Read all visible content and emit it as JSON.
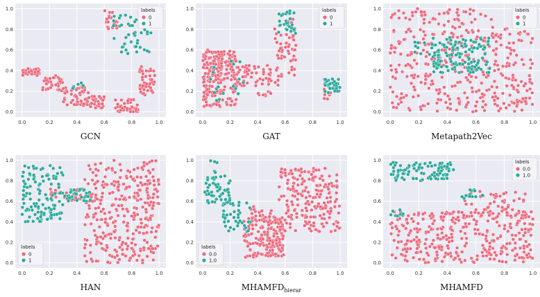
{
  "colors": {
    "class0": "#ec6a7e",
    "class1": "#2aa99a",
    "panel": "#eaeaf2"
  },
  "chart_data": [
    {
      "type": "scatter",
      "title": "GCN",
      "caption_main": "GCN",
      "caption_sub": "",
      "xlim": [
        -0.05,
        1.05
      ],
      "ylim": [
        -0.05,
        1.05
      ],
      "xticks": [
        "0.0",
        "0.2",
        "0.4",
        "0.6",
        "0.8",
        "1.0"
      ],
      "yticks": [
        "0.0",
        "0.2",
        "0.4",
        "0.6",
        "0.8",
        "1.0"
      ],
      "legend": {
        "title": "labels",
        "position": "top-right",
        "entries": [
          "0",
          "1"
        ]
      },
      "series": [
        {
          "name": "0",
          "clusters": [
            {
              "x": [
                0.0,
                0.14
              ],
              "y": [
                0.35,
                0.42
              ],
              "n": 40,
              "seed": 11
            },
            {
              "x": [
                0.15,
                0.3
              ],
              "y": [
                0.2,
                0.35
              ],
              "n": 40,
              "seed": 12
            },
            {
              "x": [
                0.3,
                0.5
              ],
              "y": [
                0.05,
                0.25
              ],
              "n": 50,
              "seed": 13
            },
            {
              "x": [
                0.5,
                0.6
              ],
              "y": [
                0.03,
                0.15
              ],
              "n": 25,
              "seed": 14
            },
            {
              "x": [
                0.68,
                0.85
              ],
              "y": [
                0.0,
                0.12
              ],
              "n": 40,
              "seed": 15
            },
            {
              "x": [
                0.85,
                0.97
              ],
              "y": [
                0.15,
                0.45
              ],
              "n": 45,
              "seed": 16
            },
            {
              "x": [
                0.6,
                0.7
              ],
              "y": [
                0.8,
                0.98
              ],
              "n": 20,
              "seed": 17
            }
          ]
        },
        {
          "name": "1",
          "clusters": [
            {
              "x": [
                0.65,
                0.95
              ],
              "y": [
                0.55,
                0.95
              ],
              "n": 45,
              "seed": 18
            },
            {
              "x": [
                0.35,
                0.45
              ],
              "y": [
                0.2,
                0.3
              ],
              "n": 6,
              "seed": 19
            }
          ]
        }
      ]
    },
    {
      "type": "scatter",
      "title": "GAT",
      "caption_main": "GAT",
      "caption_sub": "",
      "xlim": [
        -0.05,
        1.05
      ],
      "ylim": [
        -0.05,
        1.05
      ],
      "xticks": [
        "0.0",
        "0.2",
        "0.4",
        "0.6",
        "0.8",
        "1.0"
      ],
      "yticks": [
        "0.0",
        "0.2",
        "0.4",
        "0.6",
        "0.8",
        "1.0"
      ],
      "legend": {
        "title": "labels",
        "position": "top-right",
        "entries": [
          "0",
          "1"
        ]
      },
      "series": [
        {
          "name": "0",
          "clusters": [
            {
              "x": [
                0.0,
                0.25
              ],
              "y": [
                0.05,
                0.6
              ],
              "n": 220,
              "seed": 21
            },
            {
              "x": [
                0.25,
                0.55
              ],
              "y": [
                0.25,
                0.45
              ],
              "n": 60,
              "seed": 22
            },
            {
              "x": [
                0.52,
                0.68
              ],
              "y": [
                0.3,
                0.9
              ],
              "n": 55,
              "seed": 23
            },
            {
              "x": [
                0.4,
                0.5
              ],
              "y": [
                0.15,
                0.22
              ],
              "n": 8,
              "seed": 24
            },
            {
              "x": [
                0.88,
                0.95
              ],
              "y": [
                0.12,
                0.22
              ],
              "n": 8,
              "seed": 25
            }
          ]
        },
        {
          "name": "1",
          "clusters": [
            {
              "x": [
                0.55,
                0.68
              ],
              "y": [
                0.75,
                0.98
              ],
              "n": 30,
              "seed": 26
            },
            {
              "x": [
                0.88,
                1.0
              ],
              "y": [
                0.18,
                0.32
              ],
              "n": 40,
              "seed": 27
            },
            {
              "x": [
                0.05,
                0.3
              ],
              "y": [
                0.1,
                0.5
              ],
              "n": 18,
              "seed": 28
            }
          ]
        }
      ]
    },
    {
      "type": "scatter",
      "title": "Metapath2Vec",
      "caption_main": "Metapath2Vec",
      "caption_sub": "",
      "xlim": [
        -0.05,
        1.05
      ],
      "ylim": [
        -0.05,
        1.05
      ],
      "xticks": [
        "0.0",
        "0.2",
        "0.4",
        "0.6",
        "0.8",
        "1.0"
      ],
      "yticks": [
        "0.0",
        "0.2",
        "0.4",
        "0.6",
        "0.8",
        "1.0"
      ],
      "legend": {
        "title": "labels",
        "position": "top-right",
        "entries": [
          "0",
          "1"
        ]
      },
      "series": [
        {
          "name": "0",
          "clusters": [
            {
              "x": [
                0.0,
                1.0
              ],
              "y": [
                0.0,
                1.0
              ],
              "n": 420,
              "seed": 31
            }
          ]
        },
        {
          "name": "1",
          "clusters": [
            {
              "x": [
                0.3,
                0.7
              ],
              "y": [
                0.38,
                0.72
              ],
              "n": 140,
              "seed": 32
            },
            {
              "x": [
                0.15,
                0.3
              ],
              "y": [
                0.55,
                0.7
              ],
              "n": 10,
              "seed": 33
            }
          ]
        }
      ]
    },
    {
      "type": "scatter",
      "title": "HAN",
      "caption_main": "HAN",
      "caption_sub": "",
      "xlim": [
        -0.05,
        1.05
      ],
      "ylim": [
        -0.05,
        1.05
      ],
      "xticks": [
        "0.0",
        "0.2",
        "0.4",
        "0.6",
        "0.8",
        "1.0"
      ],
      "yticks": [
        "0.0",
        "0.2",
        "0.4",
        "0.6",
        "0.8",
        "1.0"
      ],
      "legend": {
        "title": "labels",
        "position": "bottom-left",
        "entries": [
          "0",
          "1"
        ]
      },
      "series": [
        {
          "name": "0",
          "clusters": [
            {
              "x": [
                0.45,
                1.0
              ],
              "y": [
                0.0,
                1.0
              ],
              "n": 330,
              "seed": 41
            },
            {
              "x": [
                0.2,
                0.45
              ],
              "y": [
                0.6,
                0.72
              ],
              "n": 25,
              "seed": 42
            }
          ]
        },
        {
          "name": "1",
          "clusters": [
            {
              "x": [
                0.0,
                0.3
              ],
              "y": [
                0.4,
                0.95
              ],
              "n": 120,
              "seed": 43
            },
            {
              "x": [
                0.3,
                0.5
              ],
              "y": [
                0.6,
                0.72
              ],
              "n": 35,
              "seed": 44
            }
          ]
        }
      ]
    },
    {
      "type": "scatter",
      "title": "MHAMFD_hierar",
      "caption_main": "MHAMFD",
      "caption_sub": "hierar",
      "xlim": [
        -0.05,
        1.05
      ],
      "ylim": [
        -0.05,
        1.05
      ],
      "xticks": [
        "0.0",
        "0.2",
        "0.4",
        "0.6",
        "0.8",
        "1.0"
      ],
      "yticks": [
        "0.0",
        "0.2",
        "0.4",
        "0.6",
        "0.8",
        "1.0"
      ],
      "legend": {
        "title": "labels",
        "position": "bottom-left",
        "entries": [
          "0.0",
          "1.0"
        ]
      },
      "series": [
        {
          "name": "0.0",
          "clusters": [
            {
              "x": [
                0.3,
                0.6
              ],
              "y": [
                0.05,
                0.45
              ],
              "n": 170,
              "seed": 51
            },
            {
              "x": [
                0.55,
                1.0
              ],
              "y": [
                0.3,
                0.92
              ],
              "n": 200,
              "seed": 52
            },
            {
              "x": [
                0.35,
                0.5
              ],
              "y": [
                0.45,
                0.55
              ],
              "n": 15,
              "seed": 53
            }
          ]
        },
        {
          "name": "1.0",
          "clusters": [
            {
              "x": [
                0.0,
                0.2
              ],
              "y": [
                0.55,
                0.85
              ],
              "n": 55,
              "seed": 54
            },
            {
              "x": [
                0.15,
                0.35
              ],
              "y": [
                0.3,
                0.6
              ],
              "n": 40,
              "seed": 55
            },
            {
              "x": [
                0.05,
                0.12
              ],
              "y": [
                0.88,
                1.0
              ],
              "n": 5,
              "seed": 56
            }
          ]
        }
      ]
    },
    {
      "type": "scatter",
      "title": "MHAMFD",
      "caption_main": "MHAMFD",
      "caption_sub": "",
      "xlim": [
        -0.05,
        1.05
      ],
      "ylim": [
        -0.05,
        1.05
      ],
      "xticks": [
        "0.0",
        "0.2",
        "0.4",
        "0.6",
        "0.8",
        "1.0"
      ],
      "yticks": [
        "0.0",
        "0.2",
        "0.4",
        "0.6",
        "0.8",
        "1.0"
      ],
      "legend": {
        "title": "labels",
        "position": "top-right",
        "entries": [
          "0.0",
          "1.0"
        ]
      },
      "series": [
        {
          "name": "0.0",
          "clusters": [
            {
              "x": [
                0.0,
                1.0
              ],
              "y": [
                0.0,
                0.5
              ],
              "n": 340,
              "seed": 61
            },
            {
              "x": [
                0.5,
                0.95
              ],
              "y": [
                0.45,
                0.7
              ],
              "n": 60,
              "seed": 62
            }
          ]
        },
        {
          "name": "1.0",
          "clusters": [
            {
              "x": [
                0.0,
                0.45
              ],
              "y": [
                0.8,
                0.98
              ],
              "n": 95,
              "seed": 63
            },
            {
              "x": [
                0.5,
                0.65
              ],
              "y": [
                0.6,
                0.72
              ],
              "n": 12,
              "seed": 64
            },
            {
              "x": [
                0.0,
                0.1
              ],
              "y": [
                0.45,
                0.52
              ],
              "n": 8,
              "seed": 65
            }
          ]
        }
      ]
    }
  ]
}
